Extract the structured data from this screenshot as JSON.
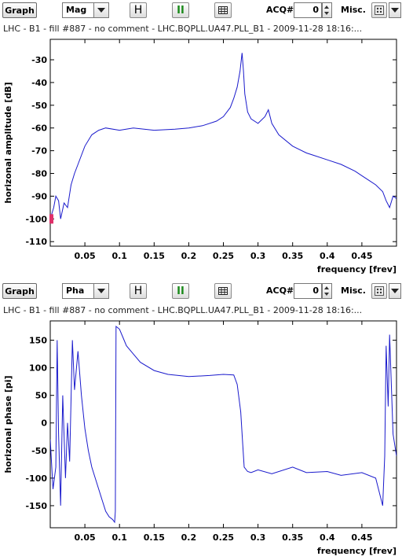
{
  "panels": [
    {
      "toolbar": {
        "graph_label": "Graph",
        "mode_value": "Mag",
        "h_label": "H",
        "pause_label": "II",
        "acq_label": "ACQ#",
        "acq_value": "0",
        "misc_label": "Misc."
      },
      "info": "LHC - B1 - fill #887 - no comment - LHC.BQPLL.UA47.PLL_B1 - 2009-11-28 18:16:..."
    },
    {
      "toolbar": {
        "graph_label": "Graph",
        "mode_value": "Pha",
        "h_label": "H",
        "pause_label": "II",
        "acq_label": "ACQ#",
        "acq_value": "0",
        "misc_label": "Misc."
      },
      "info": "LHC - B1 - fill #887 - no comment - LHC.BQPLL.UA47.PLL_B1 - 2009-11-28 18:16:..."
    }
  ],
  "chart_data": [
    {
      "type": "line",
      "title": "",
      "xlabel": "frequency [frev]",
      "ylabel": "horizonal amplitude [dB]",
      "xlim": [
        0,
        0.5
      ],
      "ylim": [
        -112,
        -21
      ],
      "xticks": [
        "0.05",
        "0.1",
        "0.15",
        "0.2",
        "0.25",
        "0.3",
        "0.35",
        "0.4",
        "0.45"
      ],
      "yticks": [
        "-30",
        "-40",
        "-50",
        "-60",
        "-70",
        "-80",
        "-90",
        "-100",
        "-110"
      ],
      "line_color": "#1a1acc",
      "marker_color": "#e0306a",
      "series": [
        {
          "x": [
            0.0,
            0.005,
            0.008,
            0.012,
            0.015,
            0.02,
            0.025,
            0.03,
            0.035,
            0.04,
            0.05,
            0.06,
            0.07,
            0.08,
            0.1,
            0.12,
            0.15,
            0.18,
            0.2,
            0.22,
            0.24,
            0.25,
            0.26,
            0.265,
            0.27,
            0.274,
            0.277,
            0.279,
            0.281,
            0.285,
            0.29,
            0.3,
            0.31,
            0.315,
            0.32,
            0.33,
            0.35,
            0.37,
            0.38,
            0.4,
            0.42,
            0.44,
            0.45,
            0.46,
            0.47,
            0.48,
            0.485,
            0.49,
            0.495,
            0.5
          ],
          "y": [
            -100,
            -95,
            -90,
            -92,
            -100,
            -93,
            -95,
            -85,
            -80,
            -76,
            -68,
            -63,
            -61,
            -60,
            -61,
            -60,
            -61,
            -60.5,
            -60,
            -59,
            -57,
            -55,
            -51,
            -47,
            -42,
            -35,
            -27,
            -35,
            -45,
            -53,
            -56,
            -58,
            -55,
            -52,
            -58,
            -63,
            -68,
            -71,
            -72,
            -74,
            -76,
            -79,
            -81,
            -83,
            -85,
            -88,
            -92,
            -95,
            -90,
            -91
          ]
        }
      ]
    },
    {
      "type": "line",
      "title": "",
      "xlabel": "frequency [frev]",
      "ylabel": "horizonal phase [pi]",
      "xlim": [
        0,
        0.5
      ],
      "ylim": [
        -190,
        185
      ],
      "xticks": [
        "0.05",
        "0.1",
        "0.15",
        "0.2",
        "0.25",
        "0.3",
        "0.35",
        "0.4",
        "0.45"
      ],
      "yticks": [
        "150",
        "100",
        "50",
        "0",
        "-50",
        "-100",
        "-150"
      ],
      "line_color": "#1a1acc",
      "series": [
        {
          "x": [
            0.0,
            0.004,
            0.008,
            0.01,
            0.012,
            0.015,
            0.018,
            0.022,
            0.025,
            0.028,
            0.032,
            0.035,
            0.04,
            0.045,
            0.05,
            0.055,
            0.06,
            0.065,
            0.07,
            0.075,
            0.08,
            0.085,
            0.09,
            0.093,
            0.094,
            0.095,
            0.1,
            0.105,
            0.11,
            0.12,
            0.13,
            0.15,
            0.17,
            0.2,
            0.23,
            0.25,
            0.265,
            0.27,
            0.275,
            0.278,
            0.28,
            0.285,
            0.29,
            0.3,
            0.32,
            0.35,
            0.37,
            0.4,
            0.42,
            0.45,
            0.47,
            0.48,
            0.483,
            0.485,
            0.488,
            0.49,
            0.495,
            0.5
          ],
          "y": [
            -30,
            -120,
            -80,
            150,
            -20,
            -150,
            50,
            -100,
            0,
            -70,
            150,
            60,
            130,
            50,
            -10,
            -50,
            -80,
            -100,
            -120,
            -140,
            -160,
            -170,
            -175,
            -180,
            -160,
            175,
            170,
            155,
            140,
            125,
            110,
            95,
            88,
            84,
            86,
            88,
            87,
            70,
            20,
            -40,
            -80,
            -88,
            -90,
            -85,
            -92,
            -80,
            -90,
            -88,
            -95,
            -90,
            -100,
            -150,
            -60,
            140,
            30,
            160,
            -20,
            -60
          ]
        }
      ]
    }
  ]
}
